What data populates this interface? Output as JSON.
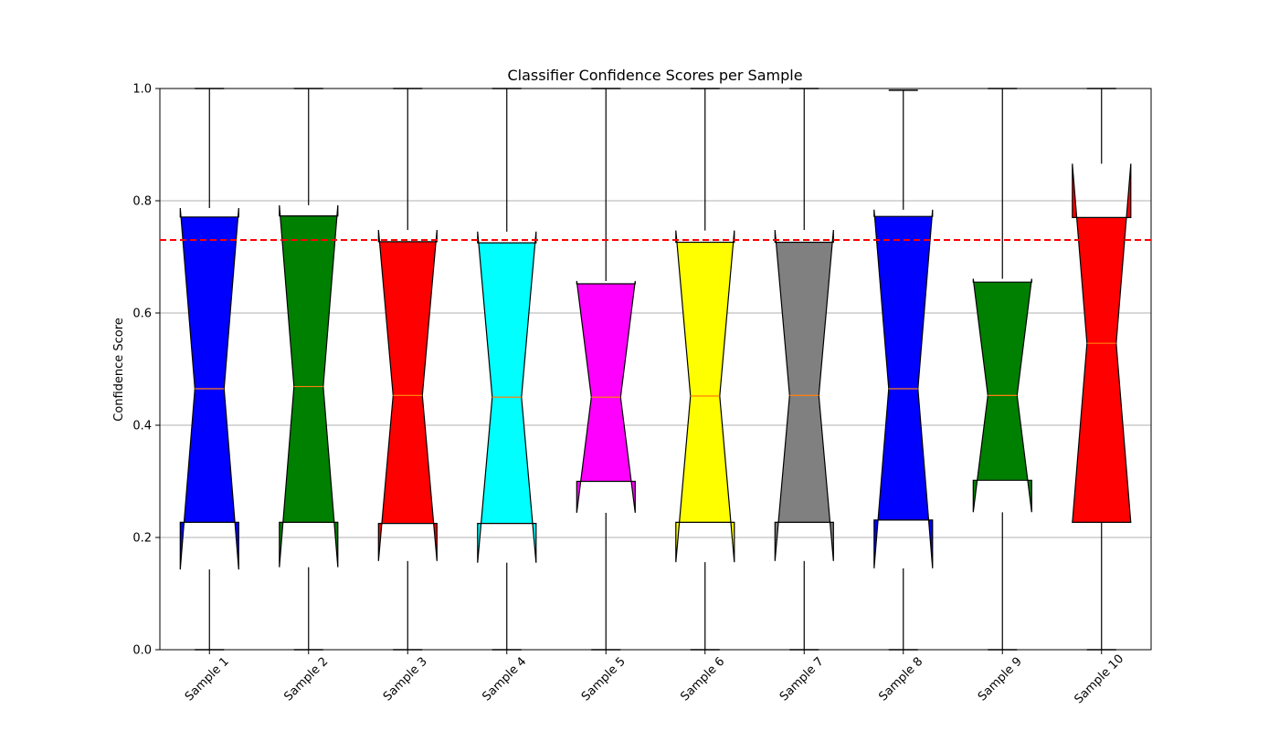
{
  "chart_data": {
    "type": "boxplot",
    "title": "Classifier Confidence Scores per Sample",
    "xlabel": "",
    "ylabel": "Confidence Score",
    "ylim": [
      0.0,
      1.0
    ],
    "yticks": [
      0.0,
      0.2,
      0.4,
      0.6,
      0.8,
      1.0
    ],
    "ytick_labels": [
      "0.0",
      "0.2",
      "0.4",
      "0.6",
      "0.8",
      "1.0"
    ],
    "grid": "horizontal",
    "notched": true,
    "threshold": {
      "value": 0.73,
      "color": "#ff0000",
      "style": "dashed"
    },
    "median_color": "#ff7f0e",
    "categories": [
      "Sample 1",
      "Sample 2",
      "Sample 3",
      "Sample 4",
      "Sample 5",
      "Sample 6",
      "Sample 7",
      "Sample 8",
      "Sample 9",
      "Sample 10"
    ],
    "boxes": [
      {
        "label": "Sample 1",
        "color": "#0000ff",
        "whisker_low": 0.0,
        "q1": 0.227,
        "median": 0.465,
        "q3": 0.771,
        "whisker_high": 1.0,
        "notch_low": 0.143,
        "notch_high": 0.787
      },
      {
        "label": "Sample 2",
        "color": "#008000",
        "whisker_low": 0.0,
        "q1": 0.227,
        "median": 0.469,
        "q3": 0.773,
        "whisker_high": 1.0,
        "notch_low": 0.147,
        "notch_high": 0.792
      },
      {
        "label": "Sample 3",
        "color": "#ff0000",
        "whisker_low": 0.0,
        "q1": 0.225,
        "median": 0.453,
        "q3": 0.727,
        "whisker_high": 1.0,
        "notch_low": 0.158,
        "notch_high": 0.748
      },
      {
        "label": "Sample 4",
        "color": "#00ffff",
        "whisker_low": 0.0,
        "q1": 0.225,
        "median": 0.45,
        "q3": 0.725,
        "whisker_high": 1.0,
        "notch_low": 0.155,
        "notch_high": 0.745
      },
      {
        "label": "Sample 5",
        "color": "#ff00ff",
        "whisker_low": 0.0,
        "q1": 0.3,
        "median": 0.45,
        "q3": 0.652,
        "whisker_high": 1.0,
        "notch_low": 0.244,
        "notch_high": 0.657
      },
      {
        "label": "Sample 6",
        "color": "#ffff00",
        "whisker_low": 0.0,
        "q1": 0.227,
        "median": 0.452,
        "q3": 0.726,
        "whisker_high": 1.0,
        "notch_low": 0.156,
        "notch_high": 0.747
      },
      {
        "label": "Sample 7",
        "color": "#808080",
        "whisker_low": 0.0,
        "q1": 0.227,
        "median": 0.453,
        "q3": 0.726,
        "whisker_high": 1.0,
        "notch_low": 0.158,
        "notch_high": 0.748
      },
      {
        "label": "Sample 8",
        "color": "#0000ff",
        "whisker_low": 0.0,
        "q1": 0.231,
        "median": 0.465,
        "q3": 0.772,
        "whisker_high": 0.997,
        "notch_low": 0.145,
        "notch_high": 0.784
      },
      {
        "label": "Sample 9",
        "color": "#008000",
        "whisker_low": 0.0,
        "q1": 0.302,
        "median": 0.453,
        "q3": 0.655,
        "whisker_high": 1.0,
        "notch_low": 0.245,
        "notch_high": 0.661
      },
      {
        "label": "Sample 10",
        "color": "#ff0000",
        "whisker_low": 0.0,
        "q1": 0.227,
        "median": 0.546,
        "q3": 0.77,
        "whisker_high": 1.0,
        "notch_low": 0.226,
        "notch_high": 0.866
      }
    ]
  }
}
